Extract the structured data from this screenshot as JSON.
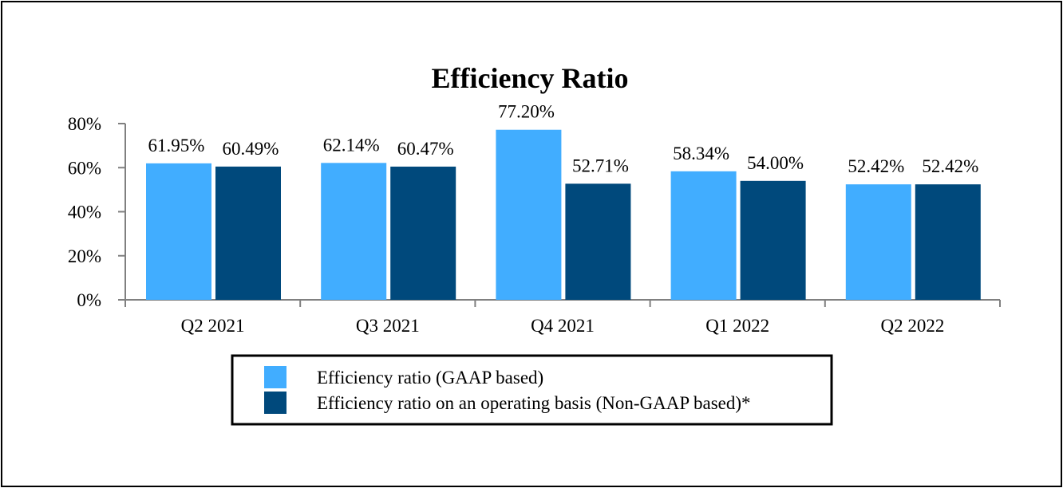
{
  "chart_data": {
    "type": "bar",
    "title": "Efficiency Ratio",
    "xlabel": "",
    "ylabel": "",
    "categories": [
      "Q2 2021",
      "Q3 2021",
      "Q4 2021",
      "Q1 2022",
      "Q2 2022"
    ],
    "ylim": [
      0,
      80
    ],
    "yticks": [
      0,
      20,
      40,
      60,
      80
    ],
    "ytick_labels": [
      "0%",
      "20%",
      "40%",
      "60%",
      "80%"
    ],
    "grid": false,
    "legend_position": "bottom",
    "series": [
      {
        "name": "Efficiency ratio (GAAP based)",
        "color": "#41adff",
        "values": [
          61.95,
          62.14,
          77.2,
          58.34,
          52.42
        ],
        "labels": [
          "61.95%",
          "62.14%",
          "77.20%",
          "58.34%",
          "52.42%"
        ]
      },
      {
        "name": "Efficiency ratio on an operating basis (Non-GAAP based)*",
        "color": "#00497c",
        "values": [
          60.49,
          60.47,
          52.71,
          54.0,
          52.42
        ],
        "labels": [
          "60.49%",
          "60.47%",
          "52.71%",
          "54.00%",
          "52.42%"
        ]
      }
    ]
  }
}
